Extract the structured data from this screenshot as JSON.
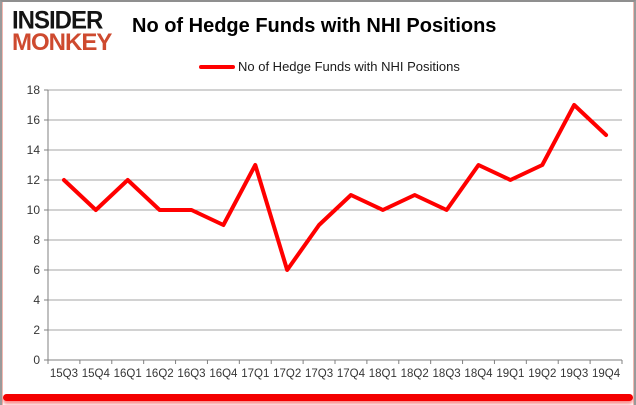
{
  "logo": {
    "line1": "INSIDER",
    "line2": "MONKEY"
  },
  "header": {
    "title": "No of Hedge Funds with NHI Positions"
  },
  "legend": {
    "label": "No of Hedge Funds with NHI Positions"
  },
  "chart_data": {
    "type": "line",
    "title": "No of Hedge Funds with NHI Positions",
    "categories": [
      "15Q3",
      "15Q4",
      "16Q1",
      "16Q2",
      "16Q3",
      "16Q4",
      "17Q1",
      "17Q2",
      "17Q3",
      "17Q4",
      "18Q1",
      "18Q2",
      "18Q3",
      "18Q4",
      "19Q1",
      "19Q2",
      "19Q3",
      "19Q4"
    ],
    "series": [
      {
        "name": "No of Hedge Funds with NHI Positions",
        "color": "#FF0000",
        "values": [
          12,
          10,
          12,
          10,
          10,
          9,
          13,
          6,
          9,
          11,
          10,
          11,
          10,
          13,
          12,
          13,
          17,
          15
        ]
      }
    ],
    "ylim": [
      0,
      18
    ],
    "ytick_step": 2,
    "grid": "horizontal",
    "legend_position": "top"
  },
  "colors": {
    "line": "#FF0000",
    "grid": "#A6A6A6",
    "axis": "#808080",
    "tick_label": "#363636",
    "logo_accent": "#CE4A2F",
    "frame_bottom": "#F40000"
  }
}
